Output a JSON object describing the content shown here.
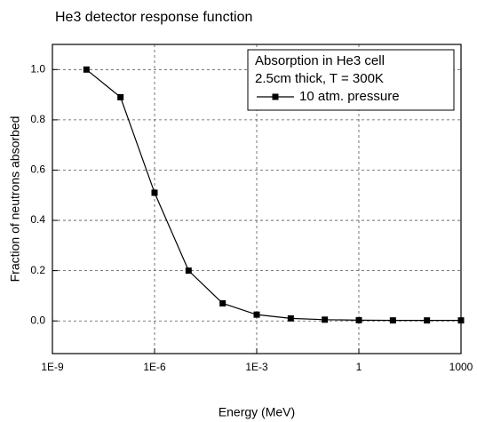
{
  "chart_data": {
    "type": "line",
    "title": "He3 detector response function",
    "xlabel": "Energy (MeV)",
    "ylabel": "Fraction of neutrons absorbed",
    "x": [
      1e-08,
      1e-07,
      1e-06,
      1e-05,
      0.0001,
      0.001,
      0.01,
      0.1,
      1,
      10,
      100,
      1000
    ],
    "series": [
      {
        "name": "10 atm. pressure",
        "color": "#000000",
        "values": [
          1.0,
          0.89,
          0.51,
          0.2,
          0.07,
          0.025,
          0.01,
          0.005,
          0.003,
          0.002,
          0.002,
          0.002
        ]
      }
    ],
    "legend_title": [
      "Absorption in He3 cell",
      "2.5cm thick, T = 300K"
    ],
    "legend": "upper right",
    "xlog": true,
    "grid": true,
    "xlim": [
      1e-09,
      1000
    ],
    "xticks": [
      {
        "value": 1e-09,
        "label": "1E-9"
      },
      {
        "value": 1e-06,
        "label": "1E-6"
      },
      {
        "value": 0.001,
        "label": "1E-3"
      },
      1,
      1000
    ],
    "ylim": [
      -0.13,
      1.1
    ],
    "yticks": [
      {
        "value": 0,
        "label": "0.0"
      },
      0.2,
      0.4,
      0.6,
      0.8,
      {
        "value": 1,
        "label": "1.0"
      }
    ]
  }
}
